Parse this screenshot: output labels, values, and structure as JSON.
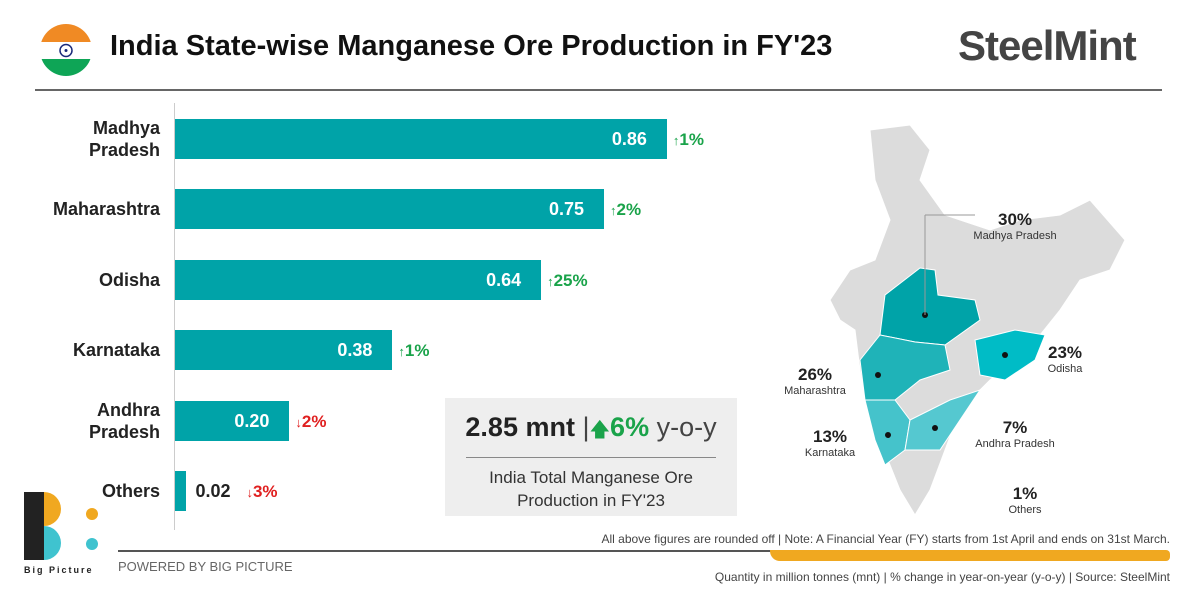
{
  "header": {
    "title": "India State-wise Manganese Ore Production in FY'23",
    "brand": "SteelMint"
  },
  "colors": {
    "bar": "#00a3a8",
    "up": "#1aa34a",
    "down": "#e02020",
    "accent": "#f0a820"
  },
  "chart_data": {
    "type": "bar",
    "orientation": "horizontal",
    "categories": [
      "Madhya Pradesh",
      "Maharashtra",
      "Odisha",
      "Karnataka",
      "Andhra Pradesh",
      "Others"
    ],
    "values": [
      0.86,
      0.75,
      0.64,
      0.38,
      0.2,
      0.02
    ],
    "value_labels": [
      "0.86",
      "0.75",
      "0.64",
      "0.38",
      "0.20",
      "0.02"
    ],
    "changes": [
      {
        "dir": "up",
        "label": "1%"
      },
      {
        "dir": "up",
        "label": "2%"
      },
      {
        "dir": "up",
        "label": "25%"
      },
      {
        "dir": "up",
        "label": "1%"
      },
      {
        "dir": "down",
        "label": "2%"
      },
      {
        "dir": "down",
        "label": "3%"
      }
    ],
    "unit": "mnt"
  },
  "summary": {
    "total": "2.85 mnt",
    "sep": "|",
    "change": "6%",
    "change_suffix": "y-o-y",
    "caption_line1": "India Total Manganese Ore",
    "caption_line2": "Production in FY'23"
  },
  "map": {
    "shares": [
      {
        "pct": "30%",
        "name": "Madhya Pradesh"
      },
      {
        "pct": "26%",
        "name": "Maharashtra"
      },
      {
        "pct": "23%",
        "name": "Odisha"
      },
      {
        "pct": "13%",
        "name": "Karnataka"
      },
      {
        "pct": "7%",
        "name": "Andhra Pradesh"
      },
      {
        "pct": "1%",
        "name": "Others"
      }
    ]
  },
  "footer": {
    "note": "All above figures are rounded off | Note:  A Financial Year (FY) starts from 1st April and ends on 31st March.",
    "powered": "POWERED BY BIG PICTURE",
    "source": "Quantity in million tonnes (mnt) | % change in year-on-year (y-o-y) | Source: SteelMint",
    "logo_text": "Big Picture"
  }
}
